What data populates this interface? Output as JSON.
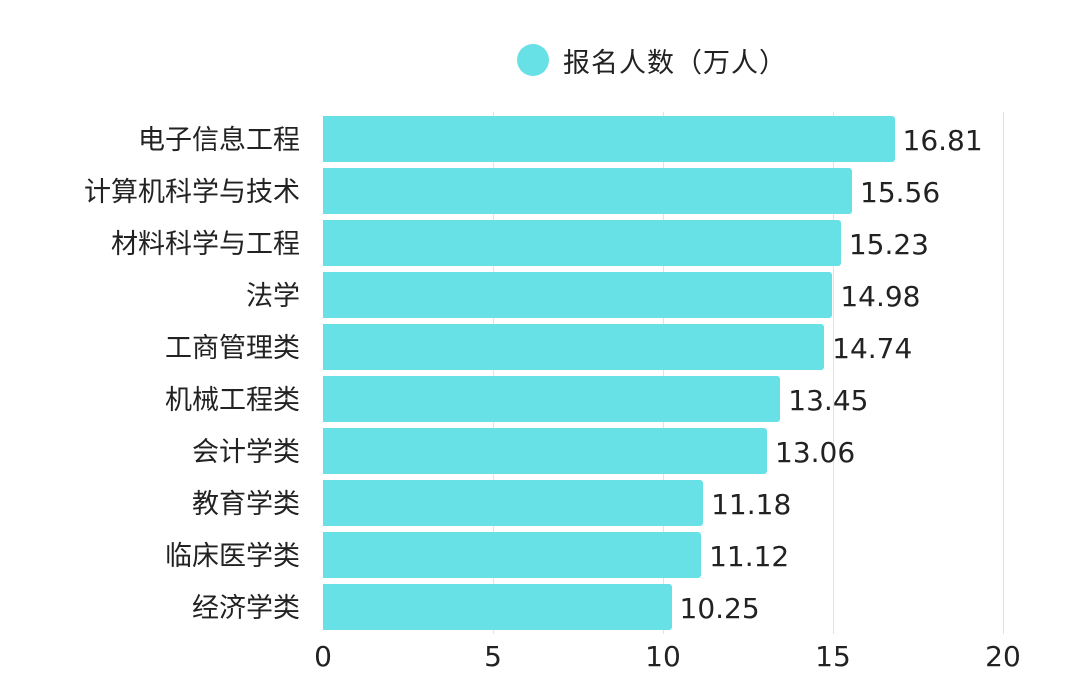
{
  "legend": {
    "label": "报名人数（万人）",
    "color": "#67e0e6"
  },
  "axis": {
    "ticks": [
      "0",
      "5",
      "10",
      "15",
      "20"
    ]
  },
  "rows": [
    {
      "label": "电子信息工程",
      "value": "16.81"
    },
    {
      "label": "计算机科学与技术",
      "value": "15.56"
    },
    {
      "label": "材料科学与工程",
      "value": "15.23"
    },
    {
      "label": "法学",
      "value": "14.98"
    },
    {
      "label": "工商管理类",
      "value": "14.74"
    },
    {
      "label": "机械工程类",
      "value": "13.45"
    },
    {
      "label": "会计学类",
      "value": "13.06"
    },
    {
      "label": "教育学类",
      "value": "11.18"
    },
    {
      "label": "临床医学类",
      "value": "11.12"
    },
    {
      "label": "经济学类",
      "value": "10.25"
    }
  ],
  "chart_data": {
    "type": "bar",
    "orientation": "horizontal",
    "title": "",
    "categories": [
      "电子信息工程",
      "计算机科学与技术",
      "材料科学与工程",
      "法学",
      "工商管理类",
      "机械工程类",
      "会计学类",
      "教育学类",
      "临床医学类",
      "经济学类"
    ],
    "series": [
      {
        "name": "报名人数（万人）",
        "color": "#67e0e6",
        "values": [
          16.81,
          15.56,
          15.23,
          14.98,
          14.74,
          13.45,
          13.06,
          11.18,
          11.12,
          10.25
        ]
      }
    ],
    "xlabel": "",
    "ylabel": "",
    "xlim": [
      0,
      20
    ],
    "xticks": [
      0,
      5,
      10,
      15,
      20
    ],
    "grid": "vertical",
    "legend_position": "top",
    "data_labels": true
  }
}
